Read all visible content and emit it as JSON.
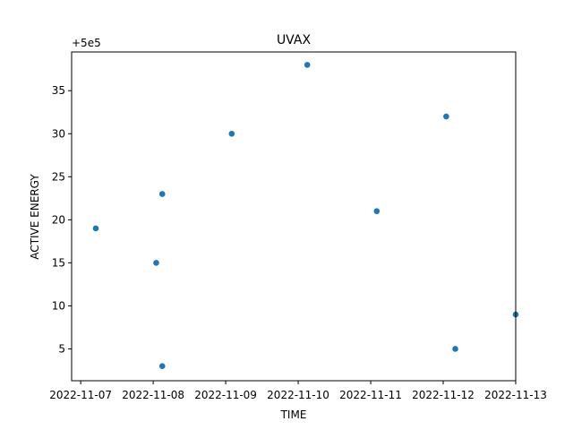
{
  "chart_data": {
    "type": "scatter",
    "title": "UVAX",
    "xlabel": "TIME",
    "ylabel": "ACTIVE ENERGY",
    "offset_label": "+5e5",
    "x_type": "date",
    "xlim": [
      "2022-11-06T21:00",
      "2022-11-13T00:00"
    ],
    "ylim": [
      500001.3,
      500039.5
    ],
    "x_ticks": [
      "2022-11-07",
      "2022-11-08",
      "2022-11-09",
      "2022-11-10",
      "2022-11-11",
      "2022-11-12",
      "2022-11-13"
    ],
    "y_ticks": [
      5,
      10,
      15,
      20,
      25,
      30,
      35
    ],
    "grid": false,
    "marker_color": "#1f77b4",
    "points": [
      {
        "x": "2022-11-07T05:00",
        "y": 500019
      },
      {
        "x": "2022-11-08T01:00",
        "y": 500015
      },
      {
        "x": "2022-11-08T03:00",
        "y": 500023
      },
      {
        "x": "2022-11-08T03:00",
        "y": 500003
      },
      {
        "x": "2022-11-09T02:00",
        "y": 500030
      },
      {
        "x": "2022-11-10T03:00",
        "y": 500038
      },
      {
        "x": "2022-11-11T02:00",
        "y": 500021
      },
      {
        "x": "2022-11-12T01:00",
        "y": 500032
      },
      {
        "x": "2022-11-12T04:00",
        "y": 500005
      },
      {
        "x": "2022-11-13T00:00",
        "y": 500009
      }
    ]
  }
}
